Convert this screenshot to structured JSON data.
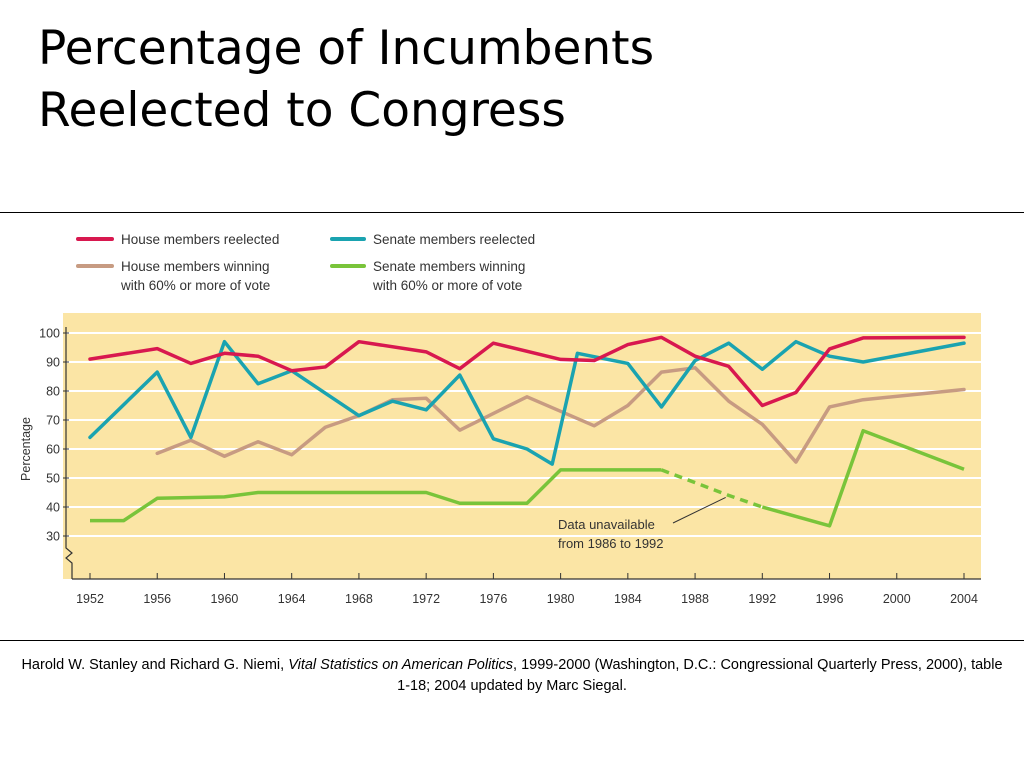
{
  "title": {
    "line1": "Percentage of Incumbents",
    "line2": "Reelected to Congress"
  },
  "source": {
    "prefix": "Harold W. Stanley and Richard G. Niemi,",
    "book": "Vital Statistics on American Politics",
    "suffix": ", 1999-2000 (Washington, D.C.: Congressional Quarterly Press, 2000), table 1-18; 2004 updated by Marc Siegal."
  },
  "colors": {
    "plot_background": "#fbe5a5",
    "gridline": "#ffffff",
    "house_reelected": "#d8184f",
    "senate_reelected": "#1aa3b0",
    "house_60": "#c79b82",
    "senate_60": "#79c43a"
  },
  "chart_data": {
    "type": "line",
    "xlabel": "",
    "ylabel": "Percentage",
    "xlim": [
      1952,
      2004
    ],
    "ylim": [
      30,
      100
    ],
    "y_axis_break": true,
    "x_ticks": [
      "1952",
      "1956",
      "1960",
      "1964",
      "1968",
      "1972",
      "1976",
      "1980",
      "1984",
      "1988",
      "1992",
      "1996",
      "2000",
      "2004"
    ],
    "y_ticks": [
      "30",
      "40",
      "50",
      "60",
      "70",
      "80",
      "90",
      "100"
    ],
    "grid": "horizontal",
    "legend_position": "top",
    "annotation": {
      "text_line1": "Data unavailable",
      "text_line2": "from 1986 to 1992",
      "points_to": [
        1990,
        44
      ]
    },
    "series": [
      {
        "name": "House members reelected",
        "color_key": "house_reelected",
        "points": [
          [
            1952,
            91
          ],
          [
            1956,
            94.6
          ],
          [
            1958,
            89.5
          ],
          [
            1960,
            93
          ],
          [
            1962,
            92
          ],
          [
            1964,
            87
          ],
          [
            1966,
            88.3
          ],
          [
            1968,
            97
          ],
          [
            1972,
            93.5
          ],
          [
            1974,
            87.7
          ],
          [
            1976,
            96.5
          ],
          [
            1980,
            90.9
          ],
          [
            1982,
            90.5
          ],
          [
            1984,
            96
          ],
          [
            1986,
            98.5
          ],
          [
            1988,
            92
          ],
          [
            1990,
            88.5
          ],
          [
            1992,
            75
          ],
          [
            1994,
            79.5
          ],
          [
            1996,
            94.5
          ],
          [
            1998,
            98.3
          ],
          [
            2004,
            98.5
          ]
        ]
      },
      {
        "name": "Senate members reelected",
        "color_key": "senate_reelected",
        "points": [
          [
            1952,
            64
          ],
          [
            1956,
            86.5
          ],
          [
            1958,
            64
          ],
          [
            1960,
            97
          ],
          [
            1962,
            82.5
          ],
          [
            1964,
            87
          ],
          [
            1968,
            71.5
          ],
          [
            1970,
            76.5
          ],
          [
            1972,
            73.5
          ],
          [
            1974,
            85.5
          ],
          [
            1976,
            63.5
          ],
          [
            1978,
            60
          ],
          [
            1979.5,
            54.8
          ],
          [
            1981,
            93
          ],
          [
            1984,
            89.5
          ],
          [
            1986,
            74.5
          ],
          [
            1988,
            90.5
          ],
          [
            1990,
            96.5
          ],
          [
            1992,
            87.5
          ],
          [
            1994,
            97
          ],
          [
            1996,
            92
          ],
          [
            1998,
            90
          ],
          [
            2004,
            96.5
          ]
        ]
      },
      {
        "name": "House members winning with 60% or more of vote",
        "color_key": "house_60",
        "points": [
          [
            1956,
            58.5
          ],
          [
            1958,
            63
          ],
          [
            1960,
            57.5
          ],
          [
            1962,
            62.5
          ],
          [
            1964,
            58
          ],
          [
            1966,
            67.5
          ],
          [
            1968,
            71.5
          ],
          [
            1970,
            77
          ],
          [
            1972,
            77.5
          ],
          [
            1974,
            66.5
          ],
          [
            1978,
            78
          ],
          [
            1982,
            68
          ],
          [
            1984,
            75
          ],
          [
            1986,
            86.5
          ],
          [
            1988,
            88
          ],
          [
            1990,
            76.5
          ],
          [
            1992,
            68.5
          ],
          [
            1994,
            55.5
          ],
          [
            1996,
            74.5
          ],
          [
            1998,
            77
          ],
          [
            2004,
            80.5
          ]
        ]
      },
      {
        "name": "Senate members winning with 60% or more of vote",
        "color_key": "senate_60",
        "points": [
          [
            1952,
            35.3
          ],
          [
            1954,
            35.3
          ],
          [
            1956,
            43
          ],
          [
            1960,
            43.5
          ],
          [
            1962,
            45
          ],
          [
            1972,
            45
          ],
          [
            1974,
            41.3
          ],
          [
            1978,
            41.3
          ],
          [
            1980,
            52.8
          ],
          [
            1986,
            52.8
          ],
          [
            1990,
            44
          ],
          [
            1992,
            40
          ],
          [
            1996,
            33.5
          ],
          [
            1998,
            66.3
          ],
          [
            2004,
            53
          ]
        ],
        "dashed_segment": [
          1986,
          1992
        ]
      }
    ]
  }
}
